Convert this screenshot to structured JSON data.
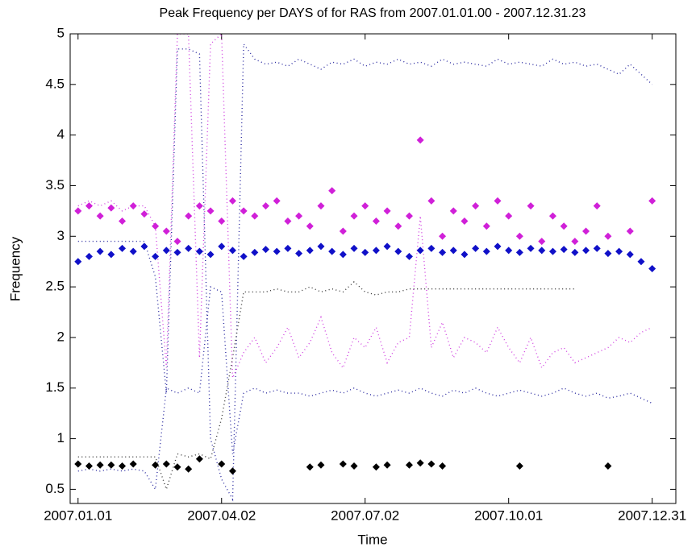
{
  "chart_data": {
    "type": "scatter",
    "title": "Peak Frequency per DAYS of for RAS from 2007.01.01.00 - 2007.12.31.23",
    "x_label": "Time",
    "y_label": "Frequency",
    "xlim": [
      -5,
      379
    ],
    "ylim": [
      0.36,
      5
    ],
    "xticks": [
      {
        "value": 0,
        "label": "2007.01.01"
      },
      {
        "value": 91,
        "label": "2007.04.02"
      },
      {
        "value": 182,
        "label": "2007.07.02"
      },
      {
        "value": 273,
        "label": "2007.10.01"
      },
      {
        "value": 364,
        "label": "2007.12.31"
      }
    ],
    "yticks": [
      0.5,
      1,
      1.5,
      2,
      2.5,
      3,
      3.5,
      4,
      4.5,
      5
    ],
    "x": [
      0,
      7,
      14,
      21,
      28,
      35,
      42,
      49,
      56,
      63,
      70,
      77,
      84,
      91,
      98,
      105,
      112,
      119,
      126,
      133,
      140,
      147,
      154,
      161,
      168,
      175,
      182,
      189,
      196,
      203,
      210,
      217,
      224,
      231,
      238,
      245,
      252,
      259,
      266,
      273,
      280,
      287,
      294,
      301,
      308,
      315,
      322,
      329,
      336,
      343,
      350,
      357,
      364
    ],
    "series": [
      {
        "style": "dotted",
        "color": "#2a2aa0",
        "values": [
          2.95,
          2.95,
          2.95,
          2.95,
          2.95,
          2.95,
          2.95,
          2.6,
          1.45,
          4.85,
          4.85,
          4.8,
          1.0,
          0.6,
          0.4,
          4.9,
          4.75,
          4.7,
          4.72,
          4.68,
          4.75,
          4.7,
          4.65,
          4.72,
          4.7,
          4.75,
          4.68,
          4.72,
          4.7,
          4.75,
          4.7,
          4.72,
          4.68,
          4.75,
          4.7,
          4.72,
          4.7,
          4.68,
          4.75,
          4.7,
          4.72,
          4.7,
          4.68,
          4.75,
          4.7,
          4.72,
          4.68,
          4.7,
          4.65,
          4.6,
          4.7,
          4.6,
          4.5
        ]
      },
      {
        "style": "dotted",
        "color": "#2a2aa0",
        "values": [
          0.68,
          0.7,
          0.68,
          0.7,
          0.68,
          0.7,
          0.68,
          0.5,
          1.5,
          1.45,
          1.5,
          1.45,
          2.5,
          2.45,
          0.85,
          1.45,
          1.5,
          1.45,
          1.48,
          1.45,
          1.45,
          1.42,
          1.45,
          1.48,
          1.45,
          1.5,
          1.45,
          1.42,
          1.45,
          1.48,
          1.45,
          1.5,
          1.45,
          1.42,
          1.48,
          1.45,
          1.5,
          1.45,
          1.42,
          1.45,
          1.48,
          1.45,
          1.42,
          1.45,
          1.5,
          1.45,
          1.42,
          1.45,
          1.4,
          1.42,
          1.45,
          1.4,
          1.35
        ]
      },
      {
        "style": "dotted",
        "color": "#d040e0",
        "values": [
          3.3,
          3.35,
          3.3,
          3.35,
          3.25,
          3.3,
          3.3,
          3.1,
          1.7,
          5.0,
          5.0,
          1.8,
          4.9,
          5.0,
          1.6,
          1.85,
          2.0,
          1.75,
          1.9,
          2.1,
          1.8,
          1.95,
          2.2,
          1.85,
          1.7,
          2.0,
          1.9,
          2.1,
          1.75,
          1.95,
          2.0,
          3.2,
          1.9,
          2.15,
          1.8,
          2.0,
          1.95,
          1.85,
          2.1,
          1.9,
          1.75,
          2.0,
          1.7,
          1.85,
          1.9,
          1.75,
          1.8,
          1.85,
          1.9,
          2.0,
          1.95,
          2.05,
          2.1
        ]
      },
      {
        "style": "dotted",
        "color": "#333333",
        "values": [
          0.82,
          0.82,
          0.82,
          0.82,
          0.82,
          0.82,
          0.82,
          0.82,
          0.5,
          0.85,
          0.82,
          0.85,
          0.8,
          1.2,
          1.8,
          2.45,
          2.45,
          2.45,
          2.48,
          2.45,
          2.45,
          2.5,
          2.45,
          2.48,
          2.45,
          2.55,
          2.45,
          2.42,
          2.45,
          2.45,
          2.48,
          2.48,
          2.48,
          2.48,
          2.48,
          2.48,
          2.48,
          2.48,
          2.48,
          2.48,
          2.48,
          2.48,
          2.48,
          2.48,
          2.48,
          2.48,
          null,
          null,
          null,
          null,
          null,
          null,
          null
        ]
      },
      {
        "style": "marker",
        "color": "#d020d8",
        "values": [
          3.25,
          3.3,
          3.2,
          3.28,
          3.15,
          3.3,
          3.22,
          3.1,
          3.05,
          2.95,
          3.2,
          3.3,
          3.25,
          3.15,
          3.35,
          3.25,
          3.2,
          3.3,
          3.35,
          3.15,
          3.2,
          3.1,
          3.3,
          3.45,
          3.05,
          3.2,
          3.3,
          3.15,
          3.25,
          3.1,
          3.2,
          3.95,
          3.35,
          3.0,
          3.25,
          3.15,
          3.3,
          3.1,
          3.35,
          3.2,
          3.0,
          3.3,
          2.95,
          3.2,
          3.1,
          2.95,
          3.05,
          3.3,
          3.0,
          null,
          3.05,
          null,
          3.35
        ]
      },
      {
        "style": "marker",
        "color": "#1010c8",
        "values": [
          2.75,
          2.8,
          2.85,
          2.82,
          2.88,
          2.85,
          2.9,
          2.8,
          2.86,
          2.84,
          2.88,
          2.85,
          2.82,
          2.9,
          2.86,
          2.8,
          2.84,
          2.87,
          2.85,
          2.88,
          2.83,
          2.86,
          2.9,
          2.85,
          2.82,
          2.88,
          2.84,
          2.86,
          2.9,
          2.85,
          2.8,
          2.86,
          2.88,
          2.84,
          2.86,
          2.82,
          2.88,
          2.85,
          2.9,
          2.86,
          2.84,
          2.88,
          2.86,
          2.85,
          2.87,
          2.84,
          2.86,
          2.88,
          2.83,
          2.85,
          2.82,
          2.75,
          2.68
        ]
      },
      {
        "style": "marker",
        "color": "#000000",
        "values": [
          0.75,
          0.73,
          0.74,
          0.74,
          0.73,
          0.75,
          null,
          0.74,
          0.75,
          0.72,
          0.7,
          0.8,
          null,
          0.75,
          0.68,
          null,
          null,
          null,
          null,
          null,
          null,
          0.72,
          0.74,
          null,
          0.75,
          0.73,
          null,
          0.72,
          0.74,
          null,
          0.74,
          0.76,
          0.75,
          0.73,
          null,
          null,
          null,
          null,
          null,
          null,
          0.73,
          null,
          null,
          null,
          null,
          null,
          null,
          null,
          0.73,
          null,
          null,
          null,
          null
        ]
      }
    ]
  }
}
